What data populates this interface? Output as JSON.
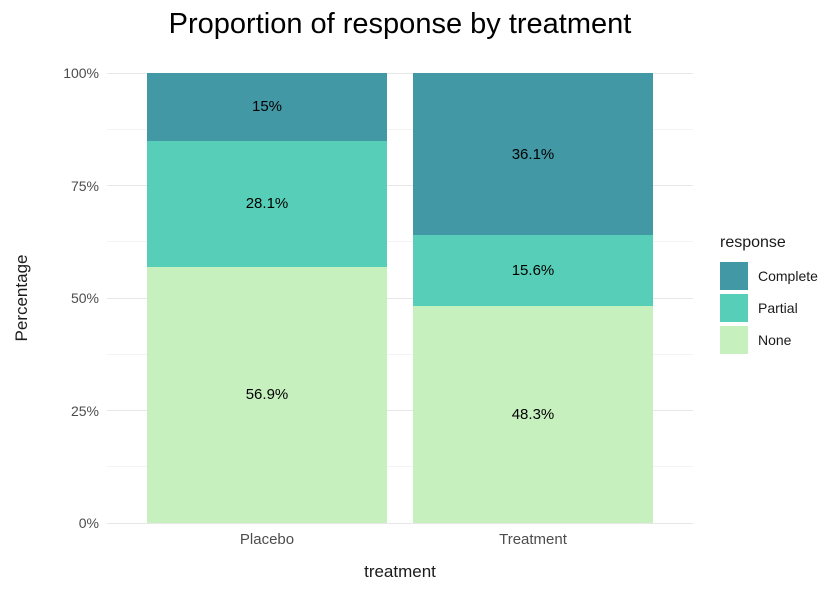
{
  "chart_data": {
    "type": "bar",
    "stacked": true,
    "percent": true,
    "title": "Proportion of response by treatment",
    "xlabel": "treatment",
    "ylabel": "Percentage",
    "ylim": [
      0,
      100
    ],
    "grid": true,
    "legend_position": "right",
    "legend_title": "response",
    "categories": [
      "Placebo",
      "Treatment"
    ],
    "y_tick_values": [
      0,
      25,
      50,
      75,
      100
    ],
    "y_tick_labels": [
      "0%",
      "25%",
      "50%",
      "75%",
      "100%"
    ],
    "series": [
      {
        "name": "Complete",
        "color": "#4398a6",
        "values": [
          15,
          36.1
        ],
        "labels": [
          "15%",
          "36.1%"
        ]
      },
      {
        "name": "Partial",
        "color": "#57cfb8",
        "values": [
          28.1,
          15.6
        ],
        "labels": [
          "28.1%",
          "15.6%"
        ]
      },
      {
        "name": "None",
        "color": "#c7f0bf",
        "values": [
          56.9,
          48.3
        ],
        "labels": [
          "56.9%",
          "48.3%"
        ]
      }
    ]
  },
  "colors": {
    "background": "#ffffff",
    "grid_major": "#e7e7e7",
    "grid_minor": "#f3f3f3",
    "axis_text": "#4d4d4d",
    "label_text": "#000000"
  }
}
